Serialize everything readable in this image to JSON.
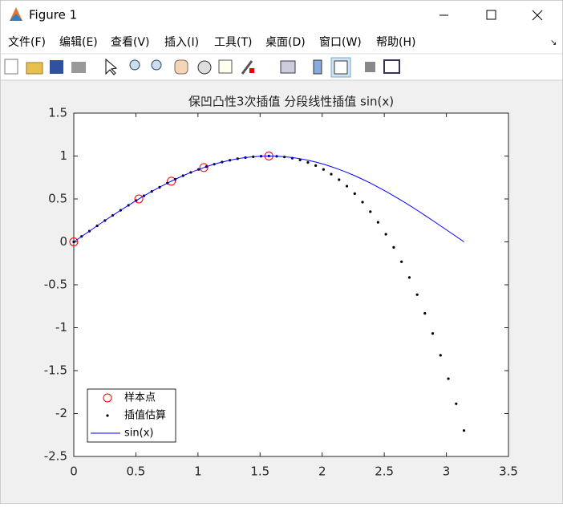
{
  "window": {
    "title": "Figure 1"
  },
  "menu": {
    "items": [
      "文件(F)",
      "编辑(E)",
      "查看(V)",
      "插入(I)",
      "工具(T)",
      "桌面(D)",
      "窗口(W)",
      "帮助(H)"
    ]
  },
  "chart_data": {
    "type": "line",
    "title": "保凹凸性3次插值 分段线性插值 sin(x)",
    "xlim": [
      0,
      3.5
    ],
    "xticks": [
      0,
      0.5,
      1,
      1.5,
      2,
      2.5,
      3,
      3.5
    ],
    "ylim": [
      -2.5,
      1.5
    ],
    "yticks": [
      -2.5,
      -2,
      -1.5,
      -1,
      -0.5,
      0,
      0.5,
      1,
      1.5
    ],
    "legend": "lower left",
    "series": [
      {
        "name": "样本点",
        "color": "#ff0000",
        "marker": "circle",
        "x": [
          0,
          0.5236,
          0.7854,
          1.0472,
          1.5708
        ],
        "values": [
          0,
          0.5,
          0.7071,
          0.866,
          1
        ]
      },
      {
        "name": "插值估算",
        "color": "#000000",
        "marker": "dot",
        "x": [
          0,
          0.063,
          0.126,
          0.188,
          0.251,
          0.314,
          0.377,
          0.44,
          0.503,
          0.565,
          0.628,
          0.691,
          0.754,
          0.817,
          0.88,
          0.942,
          1.005,
          1.068,
          1.131,
          1.194,
          1.257,
          1.319,
          1.382,
          1.445,
          1.508,
          1.571,
          1.634,
          1.696,
          1.759,
          1.822,
          1.885,
          1.948,
          2.011,
          2.073,
          2.136,
          2.199,
          2.262,
          2.325,
          2.388,
          2.45,
          2.513,
          2.576,
          2.639,
          2.702,
          2.765,
          2.827,
          2.89,
          2.953,
          3.016,
          3.079,
          3.142
        ],
        "values": [
          0,
          0.063,
          0.125,
          0.187,
          0.249,
          0.309,
          0.368,
          0.426,
          0.482,
          0.536,
          0.588,
          0.637,
          0.685,
          0.729,
          0.771,
          0.809,
          0.844,
          0.876,
          0.905,
          0.93,
          0.951,
          0.969,
          0.982,
          0.992,
          0.998,
          1,
          0.997,
          0.989,
          0.975,
          0.954,
          0.926,
          0.889,
          0.844,
          0.789,
          0.724,
          0.649,
          0.562,
          0.463,
          0.352,
          0.228,
          0.089,
          -0.064,
          -0.231,
          -0.415,
          -0.615,
          -0.833,
          -1.068,
          -1.321,
          -1.594,
          -1.886,
          -2.198
        ]
      },
      {
        "name": "sin(x)",
        "color": "#0000ff",
        "marker": "none",
        "x": [
          0,
          0.063,
          0.126,
          0.188,
          0.251,
          0.314,
          0.377,
          0.44,
          0.503,
          0.565,
          0.628,
          0.691,
          0.754,
          0.817,
          0.88,
          0.942,
          1.005,
          1.068,
          1.131,
          1.194,
          1.257,
          1.319,
          1.382,
          1.445,
          1.508,
          1.571,
          1.634,
          1.696,
          1.759,
          1.822,
          1.885,
          1.948,
          2.011,
          2.073,
          2.136,
          2.199,
          2.262,
          2.325,
          2.388,
          2.45,
          2.513,
          2.576,
          2.639,
          2.702,
          2.765,
          2.827,
          2.89,
          2.953,
          3.016,
          3.079,
          3.142
        ],
        "values": [
          0,
          0.063,
          0.125,
          0.187,
          0.249,
          0.309,
          0.368,
          0.426,
          0.482,
          0.536,
          0.588,
          0.637,
          0.685,
          0.729,
          0.771,
          0.809,
          0.844,
          0.876,
          0.905,
          0.93,
          0.951,
          0.969,
          0.982,
          0.992,
          0.998,
          1,
          0.998,
          0.992,
          0.982,
          0.969,
          0.951,
          0.93,
          0.905,
          0.876,
          0.844,
          0.809,
          0.771,
          0.729,
          0.685,
          0.637,
          0.588,
          0.536,
          0.482,
          0.426,
          0.368,
          0.309,
          0.249,
          0.187,
          0.125,
          0.063,
          0
        ]
      }
    ]
  }
}
